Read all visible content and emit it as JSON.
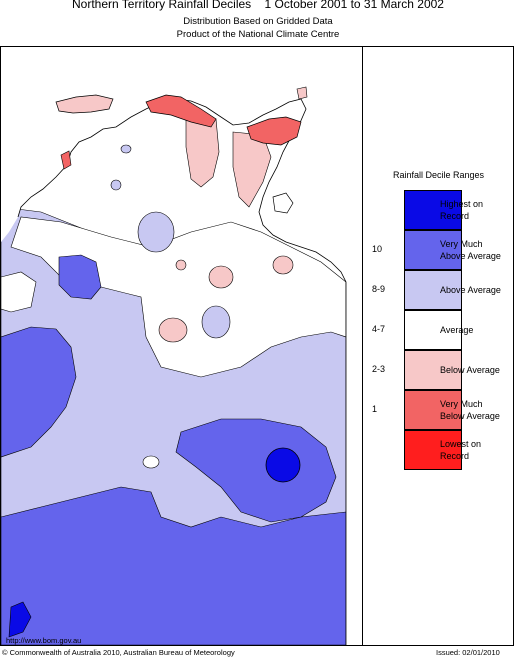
{
  "header": {
    "title": "Northern Territory Rainfall Deciles",
    "period": "1 October 2001 to 31 March 2002",
    "subtitle1": "Distribution Based on Gridded Data",
    "subtitle2": "Product of the National Climate Centre"
  },
  "legend": {
    "title": "Rainfall Decile Ranges",
    "items": [
      {
        "decile": "",
        "line1": "Highest on",
        "line2": "Record",
        "color": "#0a0ae6"
      },
      {
        "decile": "10",
        "line1": "Very Much",
        "line2": "Above Average",
        "color": "#6464ec"
      },
      {
        "decile": "8-9",
        "line1": "Above Average",
        "line2": "",
        "color": "#c8c8f2"
      },
      {
        "decile": "4-7",
        "line1": "Average",
        "line2": "",
        "color": "#ffffff"
      },
      {
        "decile": "2-3",
        "line1": "Below Average",
        "line2": "",
        "color": "#f7c8c8"
      },
      {
        "decile": "1",
        "line1": "Very Much",
        "line2": "Below Average",
        "color": "#f26464"
      },
      {
        "decile": "",
        "line1": "Lowest on",
        "line2": "Record",
        "color": "#ff1e1e"
      }
    ]
  },
  "footer": {
    "url": "http://www.bom.gov.au",
    "copyright": "© Commonwealth of Australia 2010, Australian Bureau of Meteorology",
    "issued": "Issued: 02/01/2010"
  }
}
